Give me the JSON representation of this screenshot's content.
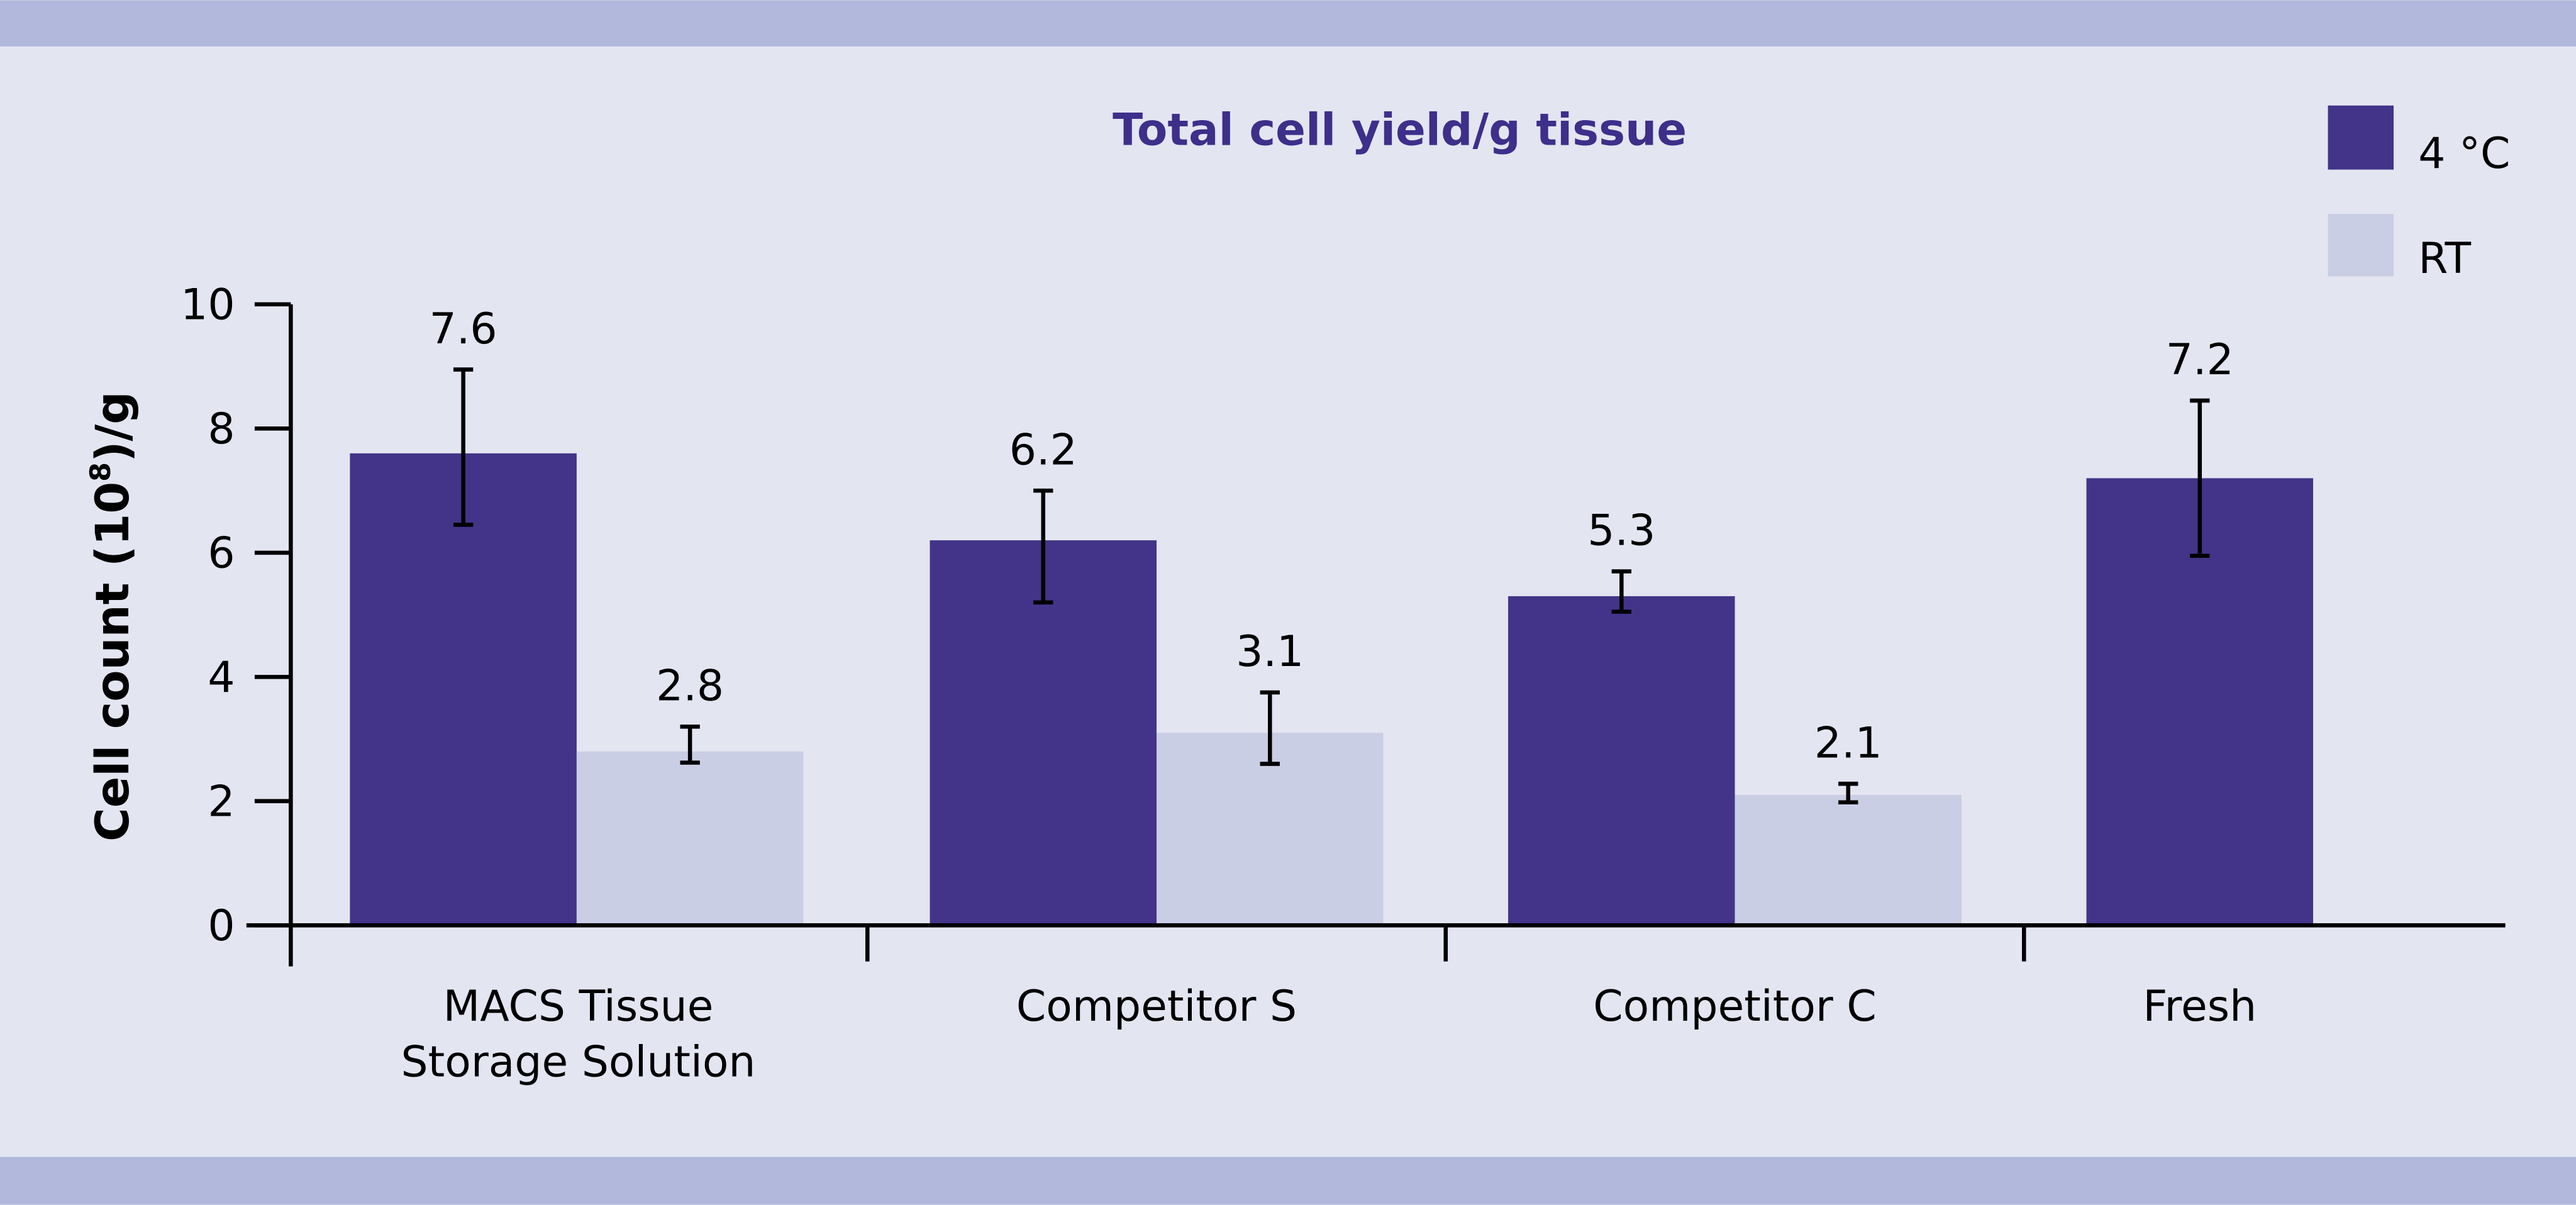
{
  "chart_data": {
    "type": "bar",
    "title": "Total cell yield/g tissue",
    "ylabel": {
      "main": "Cell count (10",
      "superscript": "8",
      "suffix": ")/g"
    },
    "xlabel": "",
    "ylim": [
      0,
      10
    ],
    "yticks": [
      "0",
      "2",
      "4",
      "6",
      "8",
      "10"
    ],
    "categories": [
      [
        "MACS Tissue",
        "Storage Solution"
      ],
      [
        "Competitor S"
      ],
      [
        "Competitor C"
      ],
      [
        "Fresh"
      ]
    ],
    "legend_position": "top-right",
    "grid": false,
    "series": [
      {
        "name": "4 °C",
        "color": "#433489",
        "values": [
          7.6,
          6.2,
          5.3,
          7.2
        ],
        "labels": [
          "7.6",
          "6.2",
          "5.3",
          "7.2"
        ],
        "error_low": [
          6.45,
          5.2,
          5.05,
          5.95
        ],
        "error_high": [
          8.95,
          7.0,
          5.7,
          8.45
        ]
      },
      {
        "name": "RT",
        "color": "#c9cee4",
        "values": [
          2.8,
          3.1,
          2.1,
          null
        ],
        "labels": [
          "2.8",
          "3.1",
          "2.1",
          null
        ],
        "error_low": [
          2.62,
          2.6,
          1.98,
          null
        ],
        "error_high": [
          3.2,
          3.75,
          2.28,
          null
        ]
      }
    ]
  },
  "colors": {
    "background": "#e3e5f1",
    "band": "#b1b8dc",
    "title": "#3d2f8a"
  }
}
